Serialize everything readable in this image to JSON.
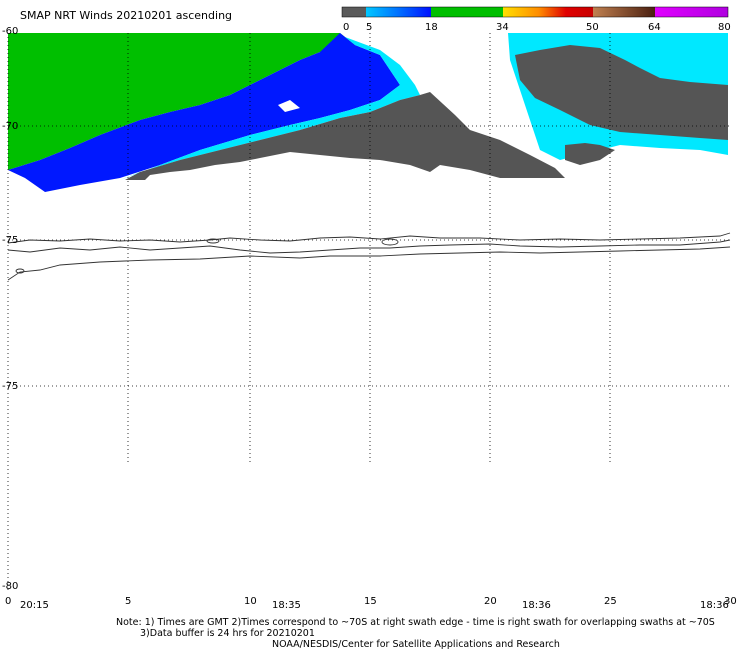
{
  "title": "SMAP NRT Winds 20210201 ascending",
  "colorbar": {
    "tick_labels": [
      "0",
      "5",
      "18",
      "34",
      "50",
      "64",
      "80"
    ],
    "colors": [
      "#6e6e6e",
      "#2e8bff",
      "#0014ff",
      "#00c800",
      "#ffd700",
      "#e32222",
      "#7a3b2a",
      "#ff00ff"
    ]
  },
  "lat_labels": [
    "-60",
    "-70",
    "-75",
    "-80"
  ],
  "lon_labels": [
    "0",
    "5",
    "10",
    "15",
    "20",
    "25",
    "30"
  ],
  "time_labels": [
    "20:15",
    "18:35",
    "18:36",
    "18:36"
  ],
  "notes": {
    "line1": "Note: 1) Times are GMT 2)Times correspond to ~70S at right swath edge - time is right swath for overlapping swaths at ~70S",
    "line2": "3)Data buffer is 24 hrs for 20210201",
    "line3": "NOAA/NESDIS/Center for Satellite Applications and Research"
  },
  "palette": {
    "green": "#00c800",
    "blue": "#0014ff",
    "cyan": "#00e5ff",
    "gray": "#606060"
  }
}
